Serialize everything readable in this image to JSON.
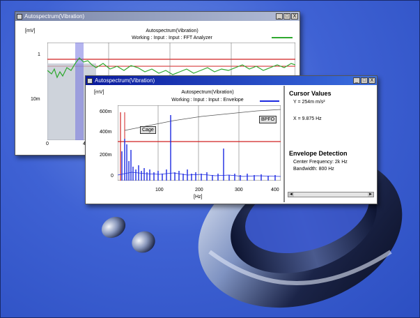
{
  "back_window": {
    "title": "Autospectrum(Vibration)",
    "unit_label": "[mV]",
    "plot_title": "Autospectrum(Vibration)",
    "plot_subtitle": "Working : Input : Input : FFT Analyzer",
    "y_ticks": [
      "1",
      "10m"
    ],
    "x_ticks": [
      "0",
      "4"
    ],
    "buttons": [
      "_",
      "□",
      "X"
    ]
  },
  "front_window": {
    "title": "Autospectrum(Vibration)",
    "unit_label": "[mV]",
    "plot_title": "Autospectrum(Vibration)",
    "plot_subtitle": "Working : Input : Input : Envelope",
    "y_ticks": [
      "600m",
      "400m",
      "200m",
      "0"
    ],
    "x_ticks": [
      "100",
      "200",
      "300",
      "400"
    ],
    "x_unit": "[Hz]",
    "cage_marker": "Cage",
    "bpfo_marker": "BPFO",
    "buttons": [
      "_",
      "□",
      "X"
    ]
  },
  "cursor_panel": {
    "heading": "Cursor Values",
    "y_value": "Y = 254m m/s²",
    "x_value": "X = 9.875 Hz",
    "envelope_heading": "Envelope Detection",
    "center_frequency": "Center Frequency: 2k Hz",
    "bandwidth": "Bandwidth: 800 Hz",
    "scroll_left": "◄",
    "scroll_right": "►"
  },
  "colors": {
    "back_trace": "#2ea82e",
    "front_trace": "#1a28e0",
    "cursor_line": "#d02020",
    "title_active": "#0a1a9c",
    "title_inactive": "#8894b4"
  }
}
